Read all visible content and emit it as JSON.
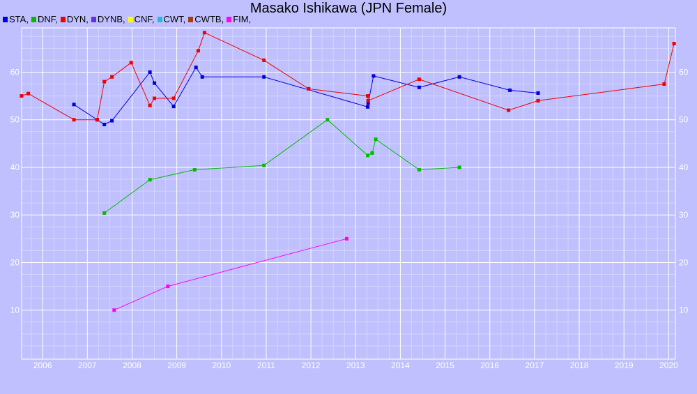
{
  "chart_data": {
    "type": "line",
    "title": "Masako Ishikawa (JPN Female)",
    "xlabel": "",
    "ylabel": "",
    "xlim": [
      2005.53,
      2020.15
    ],
    "ylim": [
      -0.3,
      69.3
    ],
    "grid": true,
    "legend_position": "top-left",
    "x_ticks": [
      2006,
      2007,
      2008,
      2009,
      2010,
      2011,
      2012,
      2013,
      2014,
      2015,
      2016,
      2017,
      2018,
      2019,
      2020
    ],
    "y_ticks": [
      10,
      20,
      30,
      40,
      50,
      60
    ],
    "series": [
      {
        "name": "STA",
        "color": "#0000dd",
        "x": [
          2006.7,
          2007.22,
          2007.38,
          2007.55,
          2008.4,
          2008.5,
          2008.93,
          2009.43,
          2009.57,
          2010.95,
          2013.27,
          2013.28,
          2013.4,
          2014.42,
          2015.32,
          2016.45,
          2017.08
        ],
        "y": [
          53.2,
          50,
          49,
          49.8,
          60,
          57.7,
          52.8,
          61,
          59,
          59,
          52.7,
          53.5,
          59.2,
          56.8,
          59,
          56.2,
          55.6
        ]
      },
      {
        "name": "DNF",
        "color": "#00bb00",
        "x": [
          2007.38,
          2008.4,
          2009.4,
          2010.95,
          2012.37,
          2013.27,
          2013.37,
          2013.45,
          2014.42,
          2015.32
        ],
        "y": [
          30.4,
          37.4,
          39.5,
          40.4,
          50,
          42.5,
          43,
          45.9,
          39.5,
          40
        ]
      },
      {
        "name": "DYN",
        "color": "#ee0000",
        "x": [
          2005.53,
          2005.68,
          2006.7,
          2007.22,
          2007.38,
          2007.55,
          2007.98,
          2008.4,
          2008.5,
          2008.93,
          2009.48,
          2009.62,
          2010.95,
          2011.95,
          2013.27,
          2013.28,
          2014.42,
          2016.42,
          2017.08,
          2019.9,
          2020.12
        ],
        "y": [
          55,
          55.5,
          50,
          50,
          58,
          59,
          62,
          53,
          54.5,
          54.5,
          64.5,
          68.3,
          62.5,
          56.5,
          55,
          54,
          58.5,
          52,
          54,
          57.5,
          66
        ]
      },
      {
        "name": "DYNB",
        "color": "#6a2be2",
        "x": [],
        "y": []
      },
      {
        "name": "CNF",
        "color": "#ffff00",
        "x": [],
        "y": []
      },
      {
        "name": "CWT",
        "color": "#22bbdd",
        "x": [],
        "y": []
      },
      {
        "name": "CWTB",
        "color": "#a0410d",
        "x": [],
        "y": []
      },
      {
        "name": "FIM",
        "color": "#ff00ff",
        "x": [
          2007.6,
          2008.8,
          2012.8
        ],
        "y": [
          10,
          15,
          25
        ]
      }
    ]
  }
}
